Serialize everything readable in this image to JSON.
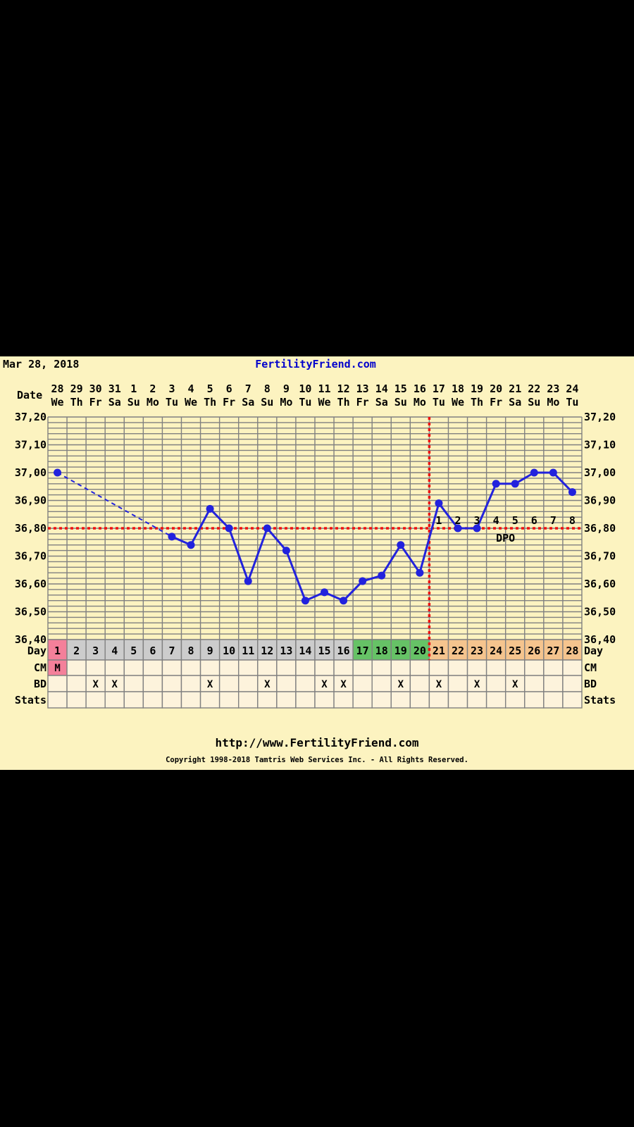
{
  "header": {
    "date": "Mar 28, 2018",
    "site": "FertilityFriend.com"
  },
  "footer": {
    "url": "http://www.FertilityFriend.com",
    "copyright": "Copyright 1998-2018 Tamtris Web Services Inc. - All Rights Reserved."
  },
  "row_labels": {
    "date": "Date",
    "day": "Day",
    "cm": "CM",
    "bd": "BD",
    "stats": "Stats"
  },
  "colors": {
    "panel": "#fcf3c0",
    "grid": "#808080",
    "line": "#2222dd",
    "coverline": "#ee1111",
    "menstruation": "#f4809a",
    "follicular": "#cccccc",
    "fertile": "#66c266",
    "luteal": "#f5c48e",
    "empty_cell": "#fdf3dc"
  },
  "chart_data": {
    "type": "line",
    "ylim": [
      36.4,
      37.2
    ],
    "y_ticks": [
      "37,20",
      "37,10",
      "37,00",
      "36,90",
      "36,80",
      "36,70",
      "36,60",
      "36,50",
      "36,40"
    ],
    "y_tick_values": [
      37.2,
      37.1,
      37.0,
      36.9,
      36.8,
      36.7,
      36.6,
      36.5,
      36.4
    ],
    "dates": [
      "28",
      "29",
      "30",
      "31",
      "1",
      "2",
      "3",
      "4",
      "5",
      "6",
      "7",
      "8",
      "9",
      "10",
      "11",
      "12",
      "13",
      "14",
      "15",
      "16",
      "17",
      "18",
      "19",
      "20",
      "21",
      "22",
      "23",
      "24"
    ],
    "weekdays": [
      "We",
      "Th",
      "Fr",
      "Sa",
      "Su",
      "Mo",
      "Tu",
      "We",
      "Th",
      "Fr",
      "Sa",
      "Su",
      "Mo",
      "Tu",
      "We",
      "Th",
      "Fr",
      "Sa",
      "Su",
      "Mo",
      "Tu",
      "We",
      "Th",
      "Fr",
      "Sa",
      "Su",
      "Mo",
      "Tu"
    ],
    "cycle_days": [
      "1",
      "2",
      "3",
      "4",
      "5",
      "6",
      "7",
      "8",
      "9",
      "10",
      "11",
      "12",
      "13",
      "14",
      "15",
      "16",
      "17",
      "18",
      "19",
      "20",
      "21",
      "22",
      "23",
      "24",
      "25",
      "26",
      "27",
      "28"
    ],
    "phases": [
      "menstruation",
      "follicular",
      "follicular",
      "follicular",
      "follicular",
      "follicular",
      "follicular",
      "follicular",
      "follicular",
      "follicular",
      "follicular",
      "follicular",
      "follicular",
      "follicular",
      "follicular",
      "follicular",
      "fertile",
      "fertile",
      "fertile",
      "fertile",
      "luteal",
      "luteal",
      "luteal",
      "luteal",
      "luteal",
      "luteal",
      "luteal",
      "luteal"
    ],
    "temperatures": [
      37.0,
      null,
      null,
      null,
      null,
      null,
      36.77,
      36.74,
      36.87,
      36.8,
      36.61,
      36.8,
      36.72,
      36.54,
      36.57,
      36.54,
      36.61,
      36.63,
      36.74,
      36.64,
      36.89,
      36.8,
      36.8,
      36.96,
      36.96,
      37.0,
      37.0,
      36.93
    ],
    "coverline": 36.8,
    "ovulation_day": 20,
    "dpo_labels": [
      "1",
      "2",
      "3",
      "4",
      "5",
      "6",
      "7",
      "8"
    ],
    "dpo_start_day": 21,
    "dpo_text": "DPO",
    "cm": [
      "M",
      "",
      "",
      "",
      "",
      "",
      "",
      "",
      "",
      "",
      "",
      "",
      "",
      "",
      "",
      "",
      "",
      "",
      "",
      "",
      "",
      "",
      "",
      "",
      "",
      "",
      "",
      ""
    ],
    "bd": [
      "",
      "",
      "X",
      "X",
      "",
      "",
      "",
      "",
      "X",
      "",
      "",
      "X",
      "",
      "",
      "X",
      "X",
      "",
      "",
      "X",
      "",
      "X",
      "",
      "X",
      "",
      "X",
      "",
      "",
      ""
    ]
  }
}
